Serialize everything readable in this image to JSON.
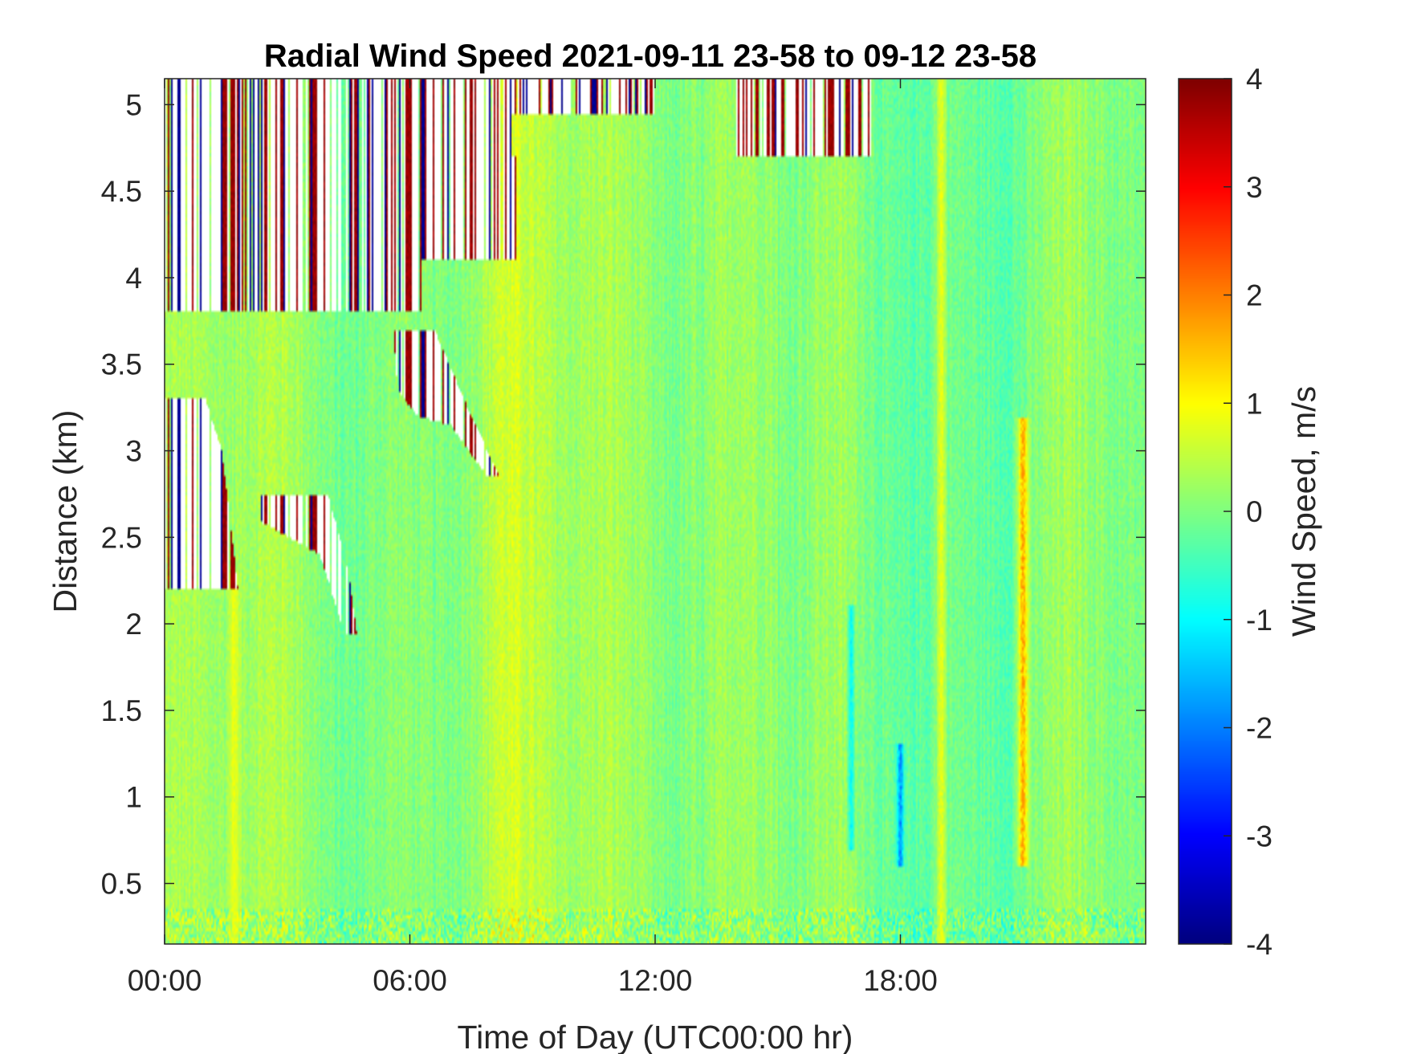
{
  "chart_data": {
    "type": "heatmap",
    "title": "Radial Wind Speed 2021-09-11 23-58 to 09-12 23-58",
    "xlabel": "Time of Day (UTC00:00 hr)",
    "ylabel": "Distance (km)",
    "xlim_hours": [
      0,
      24
    ],
    "ylim_km": [
      0.15,
      5.15
    ],
    "x_ticks": [
      "00:00",
      "06:00",
      "12:00",
      "18:00"
    ],
    "x_tick_values_hours": [
      0,
      6,
      12,
      18
    ],
    "y_ticks": [
      "0.5",
      "1",
      "1.5",
      "2",
      "2.5",
      "3",
      "3.5",
      "4",
      "4.5",
      "5"
    ],
    "y_tick_values": [
      0.5,
      1,
      1.5,
      2,
      2.5,
      3,
      3.5,
      4,
      4.5,
      5
    ],
    "colorbar": {
      "label": "Wind Speed, m/s",
      "colormap": "jet",
      "clim": [
        -4,
        4
      ],
      "ticks": [
        "4",
        "3",
        "2",
        "1",
        "0",
        "-1",
        "-2",
        "-3",
        "-4"
      ],
      "tick_values": [
        4,
        3,
        2,
        1,
        0,
        -1,
        -2,
        -3,
        -4
      ]
    },
    "typical_value_range_ms": [
      -0.5,
      0.8
    ],
    "features": {
      "noisy_region_outlines": [
        [
          [
            0,
            5.15
          ],
          [
            8.5,
            5.15
          ],
          [
            8.5,
            4.7
          ],
          [
            8.6,
            4.7
          ],
          [
            8.6,
            4.1
          ],
          [
            6.3,
            4.1
          ],
          [
            6.3,
            3.8
          ],
          [
            0,
            3.8
          ]
        ],
        [
          [
            0,
            3.3
          ],
          [
            1.0,
            3.3
          ],
          [
            1.4,
            3.0
          ],
          [
            1.6,
            2.6
          ],
          [
            1.8,
            2.2
          ],
          [
            0,
            2.2
          ]
        ],
        [
          [
            2.3,
            2.75
          ],
          [
            4.0,
            2.75
          ],
          [
            4.5,
            2.3
          ],
          [
            4.7,
            1.95
          ],
          [
            4.4,
            1.95
          ],
          [
            3.8,
            2.4
          ],
          [
            2.3,
            2.6
          ]
        ],
        [
          [
            5.6,
            3.7
          ],
          [
            6.6,
            3.7
          ],
          [
            7.5,
            3.2
          ],
          [
            8.2,
            2.85
          ],
          [
            7.9,
            2.85
          ],
          [
            7.0,
            3.15
          ],
          [
            6.2,
            3.2
          ],
          [
            5.7,
            3.35
          ]
        ],
        [
          [
            6.2,
            5.15
          ],
          [
            12.0,
            5.15
          ],
          [
            12.0,
            4.95
          ],
          [
            6.2,
            4.95
          ]
        ],
        [
          [
            14.0,
            5.15
          ],
          [
            17.3,
            5.15
          ],
          [
            17.3,
            4.7
          ],
          [
            14.0,
            4.7
          ]
        ]
      ],
      "positive_streaks": [
        {
          "t_hours": 19.0,
          "d_km": [
            0.15,
            5.15
          ],
          "value_ms": 1.0
        },
        {
          "t_hours": 21.0,
          "d_km": [
            0.6,
            3.2
          ],
          "value_ms": 2.0
        },
        {
          "t_hours": 1.7,
          "d_km": [
            0.15,
            2.3
          ],
          "value_ms": 1.0
        }
      ],
      "negative_streaks": [
        {
          "t_hours": 18.0,
          "d_km": [
            0.6,
            1.3
          ],
          "value_ms": -2.2
        },
        {
          "t_hours": 16.8,
          "d_km": [
            0.7,
            2.1
          ],
          "value_ms": -1.2
        }
      ]
    }
  }
}
